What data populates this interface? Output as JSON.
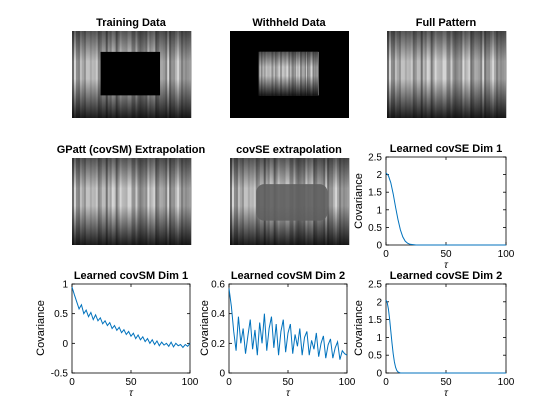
{
  "figure": {
    "panels": [
      {
        "id": "training",
        "title": "Training Data",
        "kind": "image",
        "mask": "outer"
      },
      {
        "id": "withheld",
        "title": "Withheld Data",
        "kind": "image",
        "mask": "inner"
      },
      {
        "id": "full",
        "title": "Full Pattern",
        "kind": "image",
        "mask": "none"
      },
      {
        "id": "gpatt",
        "title": "GPatt (covSM) Extrapolation",
        "kind": "image",
        "mask": "none"
      },
      {
        "id": "covse-extrap",
        "title": "covSE extrapolation",
        "kind": "image",
        "mask": "blur"
      }
    ],
    "colors": {
      "line": "#0072bd",
      "axis": "#000000",
      "image_dark": "#000000",
      "image_light": "#e8e8e8"
    }
  },
  "chart_data": [
    {
      "id": "covse-dim1",
      "type": "line",
      "title": "Learned covSE Dim 1",
      "xlabel": "τ",
      "ylabel": "Covariance",
      "xlim": [
        0,
        100
      ],
      "ylim": [
        0,
        2.5
      ],
      "xticks": [
        0,
        50,
        100
      ],
      "yticks": [
        0,
        0.5,
        1,
        1.5,
        2,
        2.5
      ],
      "x": [
        0,
        2,
        4,
        6,
        8,
        10,
        12,
        14,
        16,
        18,
        20,
        25,
        30,
        50,
        75,
        100
      ],
      "y": [
        2.05,
        1.97,
        1.77,
        1.45,
        1.07,
        0.72,
        0.43,
        0.23,
        0.11,
        0.05,
        0.02,
        0.0,
        0.0,
        0.0,
        0.0,
        0.0
      ]
    },
    {
      "id": "covsm-dim1",
      "type": "line",
      "title": "Learned covSM Dim 1",
      "xlabel": "τ",
      "ylabel": "Covariance",
      "xlim": [
        0,
        100
      ],
      "ylim": [
        -0.5,
        1
      ],
      "xticks": [
        0,
        50,
        100
      ],
      "yticks": [
        -0.5,
        0,
        0.5,
        1
      ],
      "x": [
        0,
        2,
        4,
        6,
        8,
        10,
        12,
        14,
        16,
        18,
        20,
        22,
        24,
        26,
        28,
        30,
        32,
        34,
        36,
        38,
        40,
        42,
        44,
        46,
        48,
        50,
        52,
        54,
        56,
        58,
        60,
        62,
        64,
        66,
        68,
        70,
        72,
        74,
        76,
        78,
        80,
        82,
        84,
        86,
        88,
        90,
        92,
        94,
        96,
        98,
        100
      ],
      "y": [
        0.95,
        0.82,
        0.7,
        0.58,
        0.65,
        0.5,
        0.56,
        0.45,
        0.52,
        0.4,
        0.48,
        0.38,
        0.43,
        0.33,
        0.38,
        0.3,
        0.35,
        0.25,
        0.3,
        0.22,
        0.27,
        0.18,
        0.23,
        0.15,
        0.2,
        0.12,
        0.17,
        0.08,
        0.14,
        0.06,
        0.11,
        0.03,
        0.08,
        0.0,
        0.06,
        -0.02,
        0.04,
        -0.04,
        0.02,
        -0.03,
        0.0,
        -0.05,
        0.02,
        -0.06,
        0.0,
        -0.04,
        -0.02,
        -0.07,
        -0.02,
        -0.05,
        0.0
      ]
    },
    {
      "id": "covsm-dim2",
      "type": "line",
      "title": "Learned covSM Dim 2",
      "xlabel": "τ",
      "ylabel": "Covariance",
      "xlim": [
        0,
        100
      ],
      "ylim": [
        0,
        0.6
      ],
      "xticks": [
        0,
        50,
        100
      ],
      "yticks": [
        0,
        0.2,
        0.4,
        0.6
      ],
      "x": [
        0,
        2,
        4,
        6,
        8,
        10,
        12,
        14,
        16,
        18,
        20,
        22,
        24,
        26,
        28,
        30,
        32,
        34,
        36,
        38,
        40,
        42,
        44,
        46,
        48,
        50,
        52,
        54,
        56,
        58,
        60,
        62,
        64,
        66,
        68,
        70,
        72,
        74,
        76,
        78,
        80,
        82,
        84,
        86,
        88,
        90,
        92,
        94,
        96,
        98,
        100
      ],
      "y": [
        0.57,
        0.45,
        0.28,
        0.15,
        0.38,
        0.2,
        0.3,
        0.13,
        0.25,
        0.36,
        0.16,
        0.29,
        0.12,
        0.34,
        0.2,
        0.4,
        0.15,
        0.3,
        0.38,
        0.17,
        0.33,
        0.12,
        0.28,
        0.36,
        0.14,
        0.27,
        0.33,
        0.13,
        0.26,
        0.18,
        0.3,
        0.12,
        0.24,
        0.28,
        0.12,
        0.22,
        0.16,
        0.27,
        0.11,
        0.2,
        0.25,
        0.1,
        0.19,
        0.23,
        0.1,
        0.17,
        0.21,
        0.09,
        0.15,
        0.13,
        0.12
      ]
    },
    {
      "id": "covse-dim2",
      "type": "line",
      "title": "Learned covSE Dim 2",
      "xlabel": "τ",
      "ylabel": "Covariance",
      "xlim": [
        0,
        100
      ],
      "ylim": [
        0,
        2.5
      ],
      "xticks": [
        0,
        50,
        100
      ],
      "yticks": [
        0,
        0.5,
        1,
        1.5,
        2,
        2.5
      ],
      "x": [
        0,
        1,
        2,
        3,
        4,
        5,
        6,
        7,
        8,
        9,
        10,
        12,
        15,
        50,
        100
      ],
      "y": [
        2.05,
        1.98,
        1.8,
        1.52,
        1.18,
        0.84,
        0.54,
        0.31,
        0.16,
        0.07,
        0.03,
        0.0,
        0.0,
        0.0,
        0.0
      ]
    }
  ]
}
